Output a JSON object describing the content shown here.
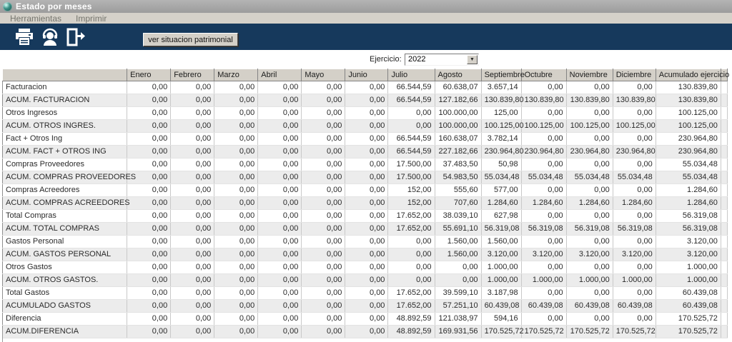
{
  "window": {
    "title": "Estado por meses"
  },
  "menu": {
    "items": [
      "Herramientas",
      "Imprimir"
    ]
  },
  "toolbar": {
    "button_label": "ver situacion patrimonial",
    "icons": [
      "printer-icon",
      "support-agent-icon",
      "exit-door-icon"
    ]
  },
  "filter": {
    "label": "Ejercicio:",
    "value": "2022"
  },
  "colors": {
    "toolbar_bg": "#16395c",
    "titlebar_bg": "#a8a8a8",
    "menubar_bg": "#d5d1c9",
    "header_bg": "#d4d0c8",
    "alt_row_bg": "#ececec"
  },
  "table": {
    "columns": [
      "",
      "Enero",
      "Febrero",
      "Marzo",
      "Abril",
      "Mayo",
      "Junio",
      "Julio",
      "Agosto",
      "Septiembre",
      "Octubre",
      "Noviembre",
      "Diciembre",
      "Acumulado ejercicio"
    ],
    "rows": [
      {
        "label": "Facturacion",
        "values": [
          "0,00",
          "0,00",
          "0,00",
          "0,00",
          "0,00",
          "0,00",
          "66.544,59",
          "60.638,07",
          "3.657,14",
          "0,00",
          "0,00",
          "0,00",
          "130.839,80"
        ]
      },
      {
        "label": "ACUM. FACTURACION",
        "values": [
          "0,00",
          "0,00",
          "0,00",
          "0,00",
          "0,00",
          "0,00",
          "66.544,59",
          "127.182,66",
          "130.839,80",
          "130.839,80",
          "130.839,80",
          "130.839,80",
          "130.839,80"
        ]
      },
      {
        "label": "Otros Ingresos",
        "values": [
          "0,00",
          "0,00",
          "0,00",
          "0,00",
          "0,00",
          "0,00",
          "0,00",
          "100.000,00",
          "125,00",
          "0,00",
          "0,00",
          "0,00",
          "100.125,00"
        ]
      },
      {
        "label": "ACUM. OTROS INGRES.",
        "values": [
          "0,00",
          "0,00",
          "0,00",
          "0,00",
          "0,00",
          "0,00",
          "0,00",
          "100.000,00",
          "100.125,00",
          "100.125,00",
          "100.125,00",
          "100.125,00",
          "100.125,00"
        ]
      },
      {
        "label": "Fact + Otros Ing",
        "values": [
          "0,00",
          "0,00",
          "0,00",
          "0,00",
          "0,00",
          "0,00",
          "66.544,59",
          "160.638,07",
          "3.782,14",
          "0,00",
          "0,00",
          "0,00",
          "230.964,80"
        ]
      },
      {
        "label": "ACUM. FACT + OTROS ING",
        "values": [
          "0,00",
          "0,00",
          "0,00",
          "0,00",
          "0,00",
          "0,00",
          "66.544,59",
          "227.182,66",
          "230.964,80",
          "230.964,80",
          "230.964,80",
          "230.964,80",
          "230.964,80"
        ]
      },
      {
        "label": "Compras Proveedores",
        "values": [
          "0,00",
          "0,00",
          "0,00",
          "0,00",
          "0,00",
          "0,00",
          "17.500,00",
          "37.483,50",
          "50,98",
          "0,00",
          "0,00",
          "0,00",
          "55.034,48"
        ]
      },
      {
        "label": "ACUM. COMPRAS PROVEEDORES",
        "values": [
          "0,00",
          "0,00",
          "0,00",
          "0,00",
          "0,00",
          "0,00",
          "17.500,00",
          "54.983,50",
          "55.034,48",
          "55.034,48",
          "55.034,48",
          "55.034,48",
          "55.034,48"
        ]
      },
      {
        "label": "Compras Acreedores",
        "values": [
          "0,00",
          "0,00",
          "0,00",
          "0,00",
          "0,00",
          "0,00",
          "152,00",
          "555,60",
          "577,00",
          "0,00",
          "0,00",
          "0,00",
          "1.284,60"
        ]
      },
      {
        "label": "ACUM. COMPRAS ACREEDORES",
        "values": [
          "0,00",
          "0,00",
          "0,00",
          "0,00",
          "0,00",
          "0,00",
          "152,00",
          "707,60",
          "1.284,60",
          "1.284,60",
          "1.284,60",
          "1.284,60",
          "1.284,60"
        ]
      },
      {
        "label": "Total Compras",
        "values": [
          "0,00",
          "0,00",
          "0,00",
          "0,00",
          "0,00",
          "0,00",
          "17.652,00",
          "38.039,10",
          "627,98",
          "0,00",
          "0,00",
          "0,00",
          "56.319,08"
        ]
      },
      {
        "label": "ACUM. TOTAL COMPRAS",
        "values": [
          "0,00",
          "0,00",
          "0,00",
          "0,00",
          "0,00",
          "0,00",
          "17.652,00",
          "55.691,10",
          "56.319,08",
          "56.319,08",
          "56.319,08",
          "56.319,08",
          "56.319,08"
        ]
      },
      {
        "label": "Gastos Personal",
        "values": [
          "0,00",
          "0,00",
          "0,00",
          "0,00",
          "0,00",
          "0,00",
          "0,00",
          "1.560,00",
          "1.560,00",
          "0,00",
          "0,00",
          "0,00",
          "3.120,00"
        ]
      },
      {
        "label": "ACUM. GASTOS PERSONAL",
        "values": [
          "0,00",
          "0,00",
          "0,00",
          "0,00",
          "0,00",
          "0,00",
          "0,00",
          "1.560,00",
          "3.120,00",
          "3.120,00",
          "3.120,00",
          "3.120,00",
          "3.120,00"
        ]
      },
      {
        "label": "Otros Gastos",
        "values": [
          "0,00",
          "0,00",
          "0,00",
          "0,00",
          "0,00",
          "0,00",
          "0,00",
          "0,00",
          "1.000,00",
          "0,00",
          "0,00",
          "0,00",
          "1.000,00"
        ]
      },
      {
        "label": "ACUM. OTROS GASTOS.",
        "values": [
          "0,00",
          "0,00",
          "0,00",
          "0,00",
          "0,00",
          "0,00",
          "0,00",
          "0,00",
          "1.000,00",
          "1.000,00",
          "1.000,00",
          "1.000,00",
          "1.000,00"
        ]
      },
      {
        "label": "Total Gastos",
        "values": [
          "0,00",
          "0,00",
          "0,00",
          "0,00",
          "0,00",
          "0,00",
          "17.652,00",
          "39.599,10",
          "3.187,98",
          "0,00",
          "0,00",
          "0,00",
          "60.439,08"
        ]
      },
      {
        "label": "ACUMULADO GASTOS",
        "values": [
          "0,00",
          "0,00",
          "0,00",
          "0,00",
          "0,00",
          "0,00",
          "17.652,00",
          "57.251,10",
          "60.439,08",
          "60.439,08",
          "60.439,08",
          "60.439,08",
          "60.439,08"
        ]
      },
      {
        "label": "Diferencia",
        "values": [
          "0,00",
          "0,00",
          "0,00",
          "0,00",
          "0,00",
          "0,00",
          "48.892,59",
          "121.038,97",
          "594,16",
          "0,00",
          "0,00",
          "0,00",
          "170.525,72"
        ]
      },
      {
        "label": "ACUM.DIFERENCIA",
        "values": [
          "0,00",
          "0,00",
          "0,00",
          "0,00",
          "0,00",
          "0,00",
          "48.892,59",
          "169.931,56",
          "170.525,72",
          "170.525,72",
          "170.525,72",
          "170.525,72",
          "170.525,72"
        ]
      }
    ]
  }
}
